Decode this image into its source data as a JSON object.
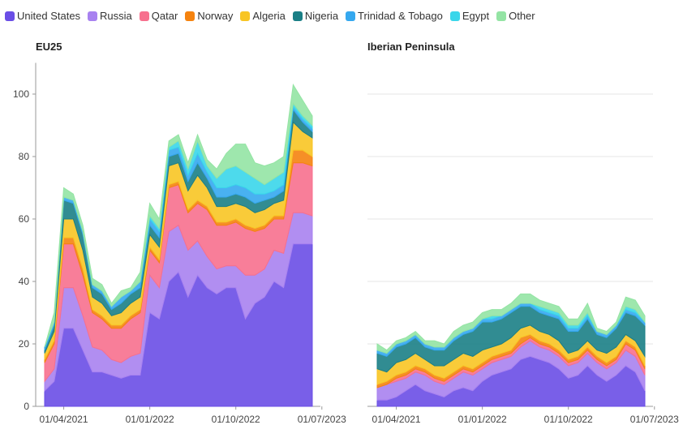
{
  "chart_data": [
    {
      "type": "area",
      "stacked": true,
      "title": "EU25",
      "x": [
        "01/02/2021",
        "01/03/2021",
        "01/04/2021",
        "01/05/2021",
        "01/06/2021",
        "01/07/2021",
        "01/08/2021",
        "01/09/2021",
        "01/10/2021",
        "01/11/2021",
        "01/12/2021",
        "01/01/2022",
        "01/02/2022",
        "01/03/2022",
        "01/04/2022",
        "01/05/2022",
        "01/06/2022",
        "01/07/2022",
        "01/08/2022",
        "01/09/2022",
        "01/10/2022",
        "01/11/2022",
        "01/12/2022",
        "01/01/2023",
        "01/02/2023",
        "01/03/2023",
        "01/04/2023",
        "01/05/2023",
        "01/06/2023"
      ],
      "xlim": [
        "01/02/2021",
        "01/06/2023"
      ],
      "xticks": [
        "01/04/2021",
        "01/01/2022",
        "01/10/2022",
        "01/07/2023"
      ],
      "ylim": [
        0,
        110
      ],
      "yticks": [
        0,
        20,
        40,
        60,
        80,
        100
      ],
      "grid": false,
      "series": [
        {
          "name": "United States",
          "color": "#6a4ee6",
          "values": [
            5,
            8,
            25,
            25,
            18,
            11,
            11,
            10,
            9,
            10,
            10,
            30,
            28,
            40,
            43,
            35,
            42,
            38,
            36,
            38,
            38,
            28,
            33,
            35,
            40,
            38,
            52,
            52,
            52
          ]
        },
        {
          "name": "Russia",
          "color": "#a882f0",
          "values": [
            3,
            4,
            13,
            13,
            11,
            8,
            7,
            5,
            5,
            6,
            7,
            12,
            10,
            16,
            15,
            15,
            11,
            10,
            8,
            7,
            7,
            14,
            9,
            9,
            10,
            11,
            10,
            10,
            9
          ]
        },
        {
          "name": "Qatar",
          "color": "#f7708e",
          "values": [
            6,
            8,
            14,
            14,
            13,
            11,
            10,
            10,
            11,
            12,
            13,
            8,
            8,
            14,
            13,
            12,
            12,
            15,
            14,
            13,
            14,
            15,
            14,
            13,
            10,
            11,
            16,
            16,
            16
          ]
        },
        {
          "name": "Norway",
          "color": "#f5830f",
          "values": [
            1,
            1,
            2,
            2,
            2,
            1,
            1,
            1,
            1,
            1,
            1,
            1,
            1,
            1,
            1,
            1,
            1,
            1,
            1,
            1,
            1,
            1,
            1,
            1,
            1,
            1,
            4,
            4,
            3
          ]
        },
        {
          "name": "Algeria",
          "color": "#f8c524",
          "values": [
            2,
            3,
            6,
            6,
            6,
            4,
            4,
            3,
            4,
            4,
            4,
            4,
            4,
            6,
            6,
            6,
            8,
            6,
            5,
            5,
            5,
            6,
            5,
            5,
            4,
            5,
            9,
            6,
            6
          ]
        },
        {
          "name": "Nigeria",
          "color": "#1b7f86",
          "values": [
            1,
            2,
            6,
            5,
            5,
            3,
            3,
            2,
            3,
            3,
            3,
            3,
            3,
            3,
            3,
            3,
            4,
            3,
            3,
            3,
            3,
            3,
            3,
            3,
            2,
            3,
            4,
            3,
            2
          ]
        },
        {
          "name": "Trinidad & Tobago",
          "color": "#35a8ef",
          "values": [
            1,
            1,
            1,
            1,
            1,
            1,
            1,
            1,
            2,
            1,
            2,
            2,
            2,
            2,
            2,
            2,
            3,
            2,
            3,
            3,
            3,
            3,
            3,
            2,
            2,
            2,
            1,
            1,
            1
          ]
        },
        {
          "name": "Egypt",
          "color": "#3ad6ea",
          "values": [
            0,
            0,
            0,
            0,
            0,
            0,
            0,
            0,
            0,
            0,
            0,
            1,
            1,
            1,
            2,
            2,
            4,
            2,
            3,
            6,
            6,
            5,
            5,
            3,
            4,
            4,
            1,
            1,
            1
          ]
        },
        {
          "name": "Other",
          "color": "#94e4a4",
          "values": [
            0,
            3,
            3,
            2,
            2,
            2,
            2,
            1,
            2,
            1,
            3,
            4,
            3,
            2,
            2,
            2,
            2,
            2,
            3,
            5,
            7,
            9,
            5,
            6,
            5,
            5,
            6,
            5,
            3
          ]
        }
      ]
    },
    {
      "type": "area",
      "stacked": true,
      "title": "Iberian Peninsula",
      "x": [
        "01/02/2021",
        "01/03/2021",
        "01/04/2021",
        "01/05/2021",
        "01/06/2021",
        "01/07/2021",
        "01/08/2021",
        "01/09/2021",
        "01/10/2021",
        "01/11/2021",
        "01/12/2021",
        "01/01/2022",
        "01/02/2022",
        "01/03/2022",
        "01/04/2022",
        "01/05/2022",
        "01/06/2022",
        "01/07/2022",
        "01/08/2022",
        "01/09/2022",
        "01/10/2022",
        "01/11/2022",
        "01/12/2022",
        "01/01/2023",
        "01/02/2023",
        "01/03/2023",
        "01/04/2023",
        "01/05/2023",
        "01/06/2023"
      ],
      "xlim": [
        "01/02/2021",
        "01/06/2023"
      ],
      "xticks": [
        "01/04/2021",
        "01/01/2022",
        "01/10/2022",
        "01/07/2023"
      ],
      "ylim": [
        0,
        110
      ],
      "yticks": [
        0,
        20,
        40,
        60,
        80,
        100
      ],
      "grid": true,
      "series": [
        {
          "values": [
            2,
            2,
            3,
            5,
            7,
            5,
            4,
            3,
            5,
            6,
            5,
            8,
            10,
            11,
            12,
            15,
            16,
            15,
            14,
            12,
            9,
            10,
            13,
            10,
            8,
            10,
            13,
            11,
            5
          ]
        },
        {
          "values": [
            4,
            5,
            5,
            4,
            4,
            5,
            4,
            4,
            4,
            5,
            5,
            4,
            4,
            4,
            4,
            4,
            5,
            4,
            4,
            4,
            4,
            4,
            4,
            4,
            4,
            4,
            5,
            5,
            5
          ]
        },
        {
          "values": [
            0,
            0,
            1,
            1,
            1,
            1,
            1,
            1,
            1,
            1,
            1,
            1,
            1,
            1,
            1,
            1,
            1,
            1,
            1,
            1,
            1,
            1,
            1,
            1,
            1,
            1,
            2,
            2,
            2
          ]
        },
        {
          "values": [
            1,
            1,
            1,
            1,
            1,
            1,
            1,
            1,
            1,
            1,
            1,
            1,
            1,
            1,
            1,
            2,
            1,
            1,
            1,
            1,
            1,
            1,
            1,
            1,
            1,
            1,
            1,
            1,
            1
          ]
        },
        {
          "values": [
            5,
            3,
            4,
            4,
            4,
            3,
            3,
            4,
            4,
            4,
            4,
            4,
            3,
            3,
            4,
            3,
            3,
            3,
            3,
            3,
            2,
            2,
            2,
            2,
            3,
            3,
            2,
            2,
            3
          ]
        },
        {
          "values": [
            5,
            5,
            5,
            5,
            5,
            4,
            5,
            5,
            6,
            6,
            8,
            9,
            8,
            8,
            8,
            7,
            6,
            6,
            6,
            7,
            7,
            6,
            7,
            5,
            5,
            6,
            7,
            8,
            10
          ]
        },
        {
          "values": [
            1,
            1,
            1,
            1,
            1,
            1,
            1,
            1,
            1,
            1,
            1,
            1,
            1,
            1,
            1,
            1,
            1,
            1,
            1,
            1,
            1,
            1,
            1,
            1,
            1,
            1,
            1,
            1,
            1
          ]
        },
        {
          "values": [
            0,
            0,
            0,
            0,
            0,
            0,
            0,
            0,
            0,
            0,
            0,
            0,
            1,
            0,
            0,
            0,
            0,
            1,
            1,
            1,
            1,
            1,
            1,
            0,
            0,
            0,
            1,
            1,
            0
          ]
        },
        {
          "values": [
            2,
            1,
            1,
            1,
            1,
            1,
            2,
            1,
            2,
            2,
            2,
            2,
            2,
            2,
            2,
            3,
            3,
            2,
            2,
            2,
            2,
            2,
            3,
            1,
            1,
            1,
            3,
            3,
            2
          ]
        }
      ]
    }
  ]
}
